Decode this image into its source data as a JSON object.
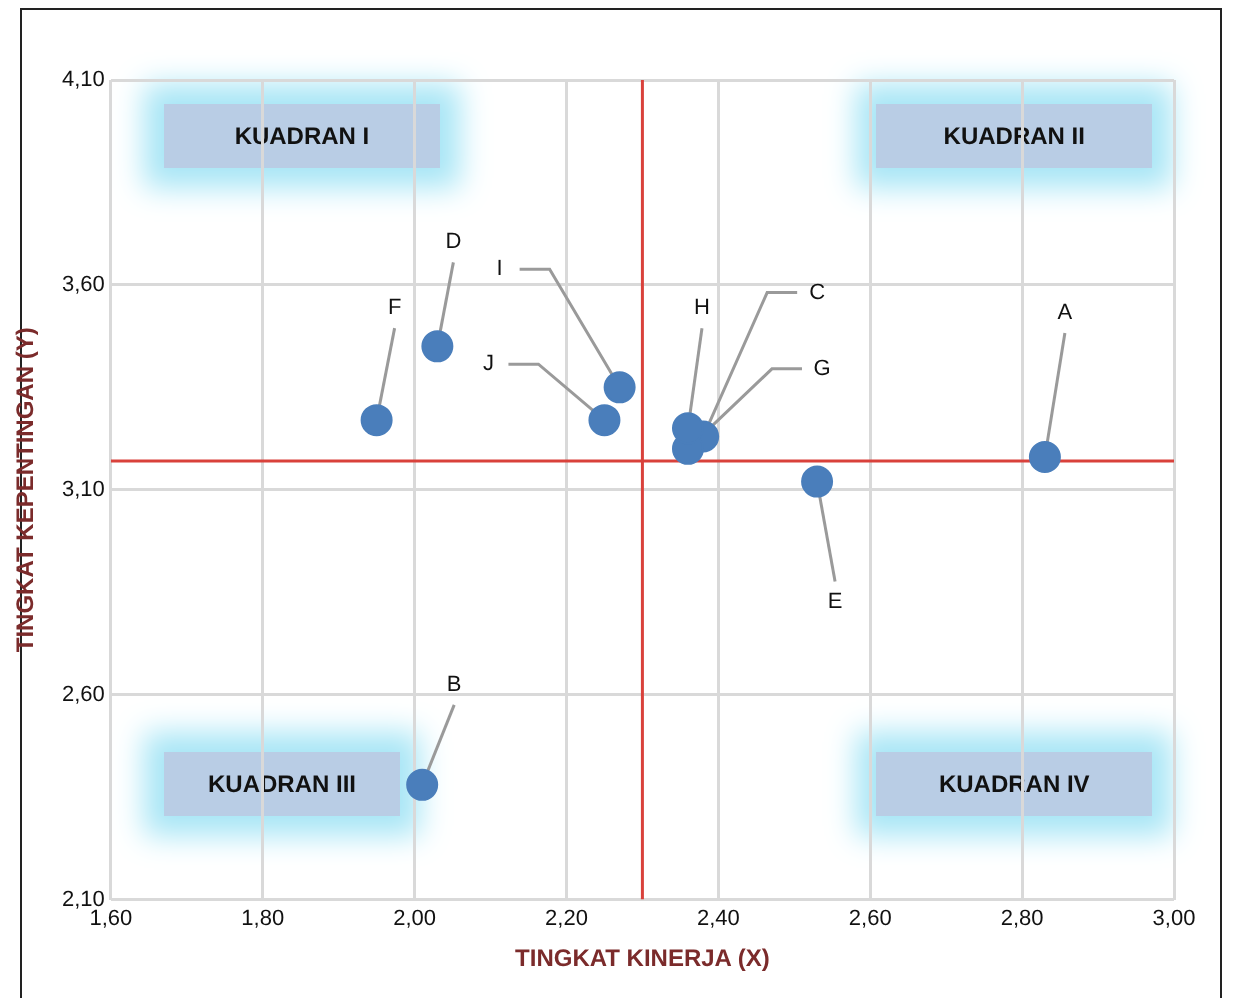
{
  "chart_data": {
    "type": "scatter",
    "xlabel": "TINGKAT KINERJA (X)",
    "ylabel": "TINGKAT KEPENTINGAN (Y)",
    "series": [
      {
        "color": "#4a7ebb",
        "x": [
          2.83,
          2.01,
          2.38,
          2.03,
          2.53,
          1.95,
          2.36,
          2.36,
          2.27,
          2.25
        ],
        "values": [
          3.18,
          2.38,
          3.23,
          3.45,
          3.12,
          3.27,
          3.2,
          3.25,
          3.35,
          3.27
        ]
      }
    ],
    "xlim": [
      1.6,
      3.0
    ],
    "xticks": [
      {
        "value": 1.6,
        "label": "1,60"
      },
      {
        "value": 1.8,
        "label": "1,80"
      },
      {
        "value": 2.0,
        "label": "2,00"
      },
      {
        "value": 2.2,
        "label": "2,20"
      },
      {
        "value": 2.4,
        "label": "2,40"
      },
      {
        "value": 2.6,
        "label": "2,60"
      },
      {
        "value": 2.8,
        "label": "2,80"
      },
      {
        "value": 3.0,
        "label": "3,00"
      }
    ],
    "ylim": [
      2.1,
      4.1
    ],
    "yticks": [
      {
        "value": 2.1,
        "label": "2,10"
      },
      {
        "value": 2.6,
        "label": "2,60"
      },
      {
        "value": 3.1,
        "label": "3,10"
      },
      {
        "value": 3.6,
        "label": "3,60"
      },
      {
        "value": 4.1,
        "label": "4,10"
      }
    ],
    "ref_lines": [
      {
        "axis": "x",
        "value": 2.3,
        "color": "#d9413b"
      },
      {
        "axis": "y",
        "value": 3.17,
        "color": "#d9413b"
      }
    ],
    "annotations": [
      "KUADRAN I",
      "KUADRAN II",
      "KUADRAN III",
      "KUADRAN IV",
      {
        "text": "A",
        "x": 2.83,
        "y": 3.18
      },
      {
        "text": "B",
        "x": 2.01,
        "y": 2.38
      },
      {
        "text": "C",
        "x": 2.38,
        "y": 3.23
      },
      {
        "text": "D",
        "x": 2.03,
        "y": 3.45
      },
      {
        "text": "E",
        "x": 2.53,
        "y": 3.12
      },
      {
        "text": "F",
        "x": 1.95,
        "y": 3.27
      },
      {
        "text": "G",
        "x": 2.36,
        "y": 3.2
      },
      {
        "text": "H",
        "x": 2.36,
        "y": 3.25
      },
      {
        "text": "I",
        "x": 2.27,
        "y": 3.35
      },
      {
        "text": "J",
        "x": 2.25,
        "y": 3.27
      }
    ],
    "grid": true,
    "marker": "circle",
    "legend": false
  }
}
